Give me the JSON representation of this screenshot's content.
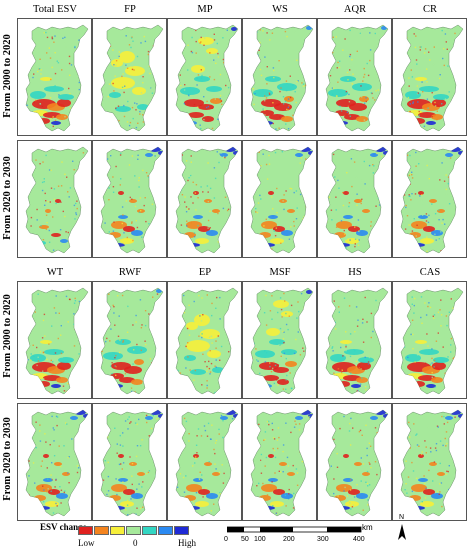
{
  "top_block": {
    "column_titles": [
      "Total ESV",
      "FP",
      "MP",
      "WS",
      "AQR",
      "CR"
    ],
    "row_labels": [
      "From 2000 to 2020",
      "From 2020 to 2030"
    ]
  },
  "bottom_block": {
    "column_titles": [
      "WT",
      "RWF",
      "EP",
      "MSF",
      "HS",
      "CAS"
    ],
    "row_labels": [
      "From 2000 to 2020",
      "From 2020 to 2030"
    ]
  },
  "legend": {
    "title": "ESV change",
    "colors": [
      "#e0211f",
      "#f4841f",
      "#f7ef3a",
      "#a6e99b",
      "#33d6c3",
      "#2b8af2",
      "#1f2ad6"
    ],
    "labels": {
      "low": "Low",
      "zero": "0",
      "high": "High"
    }
  },
  "scale_bar": {
    "ticks": [
      "0",
      "50",
      "100",
      "200",
      "300",
      "400"
    ],
    "unit": "km"
  },
  "north_arrow": {
    "label": "N"
  }
}
